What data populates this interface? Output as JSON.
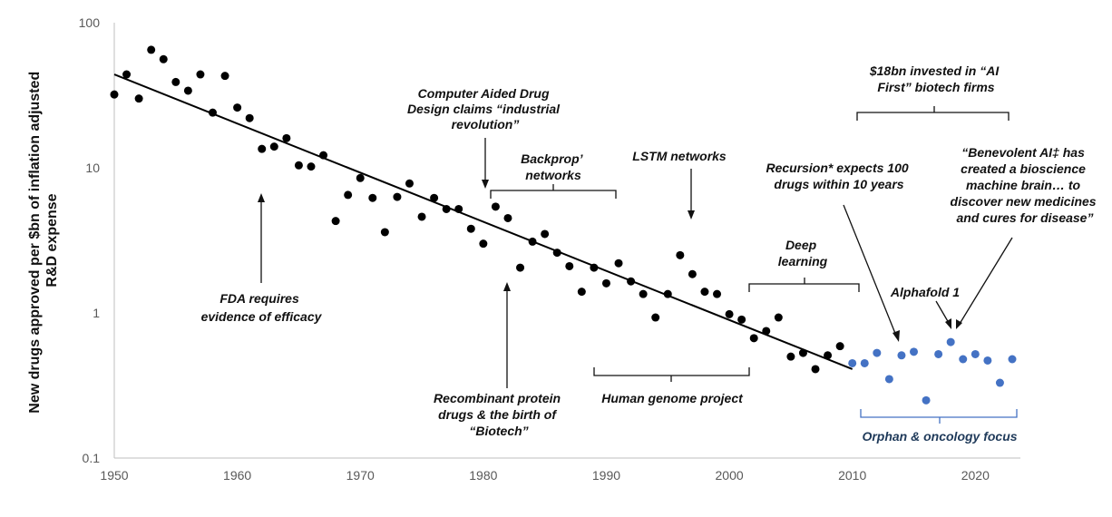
{
  "chart_data": {
    "type": "scatter",
    "title": "",
    "xlabel": "",
    "ylabel_lines": [
      "New drugs approved per $bn of inflation adjusted",
      "R&D expense"
    ],
    "xlim": [
      1950,
      2023
    ],
    "ylim": [
      0.1,
      100
    ],
    "yscale": "log",
    "xticks": [
      "1950",
      "1960",
      "1970",
      "1980",
      "1990",
      "2000",
      "2010",
      "2020"
    ],
    "yticks": [
      "0.1",
      "1",
      "10",
      "100"
    ],
    "colors": {
      "historic": "#000000",
      "recent": "#4472c4",
      "axis": "#bfbfbf",
      "trend": "#000000"
    },
    "trendline": {
      "from": [
        1950,
        44
      ],
      "to": [
        2010,
        0.41
      ]
    },
    "series": [
      {
        "name": "historic",
        "points": [
          [
            1950,
            32
          ],
          [
            1951,
            44
          ],
          [
            1952,
            30
          ],
          [
            1953,
            65
          ],
          [
            1954,
            56
          ],
          [
            1955,
            39
          ],
          [
            1956,
            34
          ],
          [
            1957,
            44
          ],
          [
            1958,
            24
          ],
          [
            1959,
            43
          ],
          [
            1960,
            26
          ],
          [
            1961,
            22
          ],
          [
            1962,
            13.5
          ],
          [
            1963,
            14
          ],
          [
            1964,
            16
          ],
          [
            1965,
            10.4
          ],
          [
            1966,
            10.2
          ],
          [
            1967,
            12.2
          ],
          [
            1968,
            4.3
          ],
          [
            1969,
            6.5
          ],
          [
            1970,
            8.5
          ],
          [
            1971,
            6.2
          ],
          [
            1972,
            3.6
          ],
          [
            1973,
            6.3
          ],
          [
            1974,
            7.8
          ],
          [
            1975,
            4.6
          ],
          [
            1976,
            6.2
          ],
          [
            1977,
            5.2
          ],
          [
            1978,
            5.2
          ],
          [
            1979,
            3.8
          ],
          [
            1980,
            3.0
          ],
          [
            1981,
            5.4
          ],
          [
            1982,
            4.5
          ],
          [
            1983,
            2.05
          ],
          [
            1984,
            3.1
          ],
          [
            1985,
            3.5
          ],
          [
            1986,
            2.6
          ],
          [
            1987,
            2.1
          ],
          [
            1988,
            1.4
          ],
          [
            1989,
            2.05
          ],
          [
            1990,
            1.6
          ],
          [
            1991,
            2.2
          ],
          [
            1992,
            1.65
          ],
          [
            1993,
            1.35
          ],
          [
            1994,
            0.93
          ],
          [
            1995,
            1.35
          ],
          [
            1996,
            2.5
          ],
          [
            1997,
            1.85
          ],
          [
            1998,
            1.4
          ],
          [
            1999,
            1.35
          ],
          [
            2000,
            0.98
          ],
          [
            2001,
            0.9
          ],
          [
            2002,
            0.67
          ],
          [
            2003,
            0.75
          ],
          [
            2004,
            0.93
          ],
          [
            2005,
            0.5
          ],
          [
            2006,
            0.53
          ],
          [
            2007,
            0.41
          ],
          [
            2008,
            0.51
          ],
          [
            2009,
            0.59
          ]
        ]
      },
      {
        "name": "recent",
        "points": [
          [
            2010,
            0.45
          ],
          [
            2011,
            0.45
          ],
          [
            2012,
            0.53
          ],
          [
            2013,
            0.35
          ],
          [
            2014,
            0.51
          ],
          [
            2015,
            0.54
          ],
          [
            2016,
            0.25
          ],
          [
            2017,
            0.52
          ],
          [
            2018,
            0.63
          ],
          [
            2019,
            0.48
          ],
          [
            2020,
            0.52
          ],
          [
            2021,
            0.47
          ],
          [
            2022,
            0.33
          ],
          [
            2023,
            0.48
          ]
        ]
      }
    ],
    "annotations": {
      "fda": [
        "FDA requires",
        "evidence of efficacy"
      ],
      "biotech": [
        "Recombinant protein",
        "drugs & the birth of",
        "“Biotech”"
      ],
      "cadd": [
        "Computer Aided Drug",
        "Design claims “industrial",
        "revolution”"
      ],
      "backprop": [
        "Backprop’",
        "networks"
      ],
      "genome": [
        "Human genome project"
      ],
      "lstm": [
        "LSTM networks"
      ],
      "deep": [
        "Deep",
        "learning"
      ],
      "invested": [
        "$18bn invested in “AI",
        "First” biotech firms"
      ],
      "recursion": [
        "Recursion* expects 100",
        "drugs within 10 years"
      ],
      "benevolent": [
        "“Benevolent AI‡ has",
        "created a bioscience",
        "machine brain… to",
        "discover new medicines",
        "and cures for disease”"
      ],
      "alphafold": [
        "Alphafold 1"
      ],
      "orphan": [
        "Orphan & oncology focus"
      ]
    }
  }
}
